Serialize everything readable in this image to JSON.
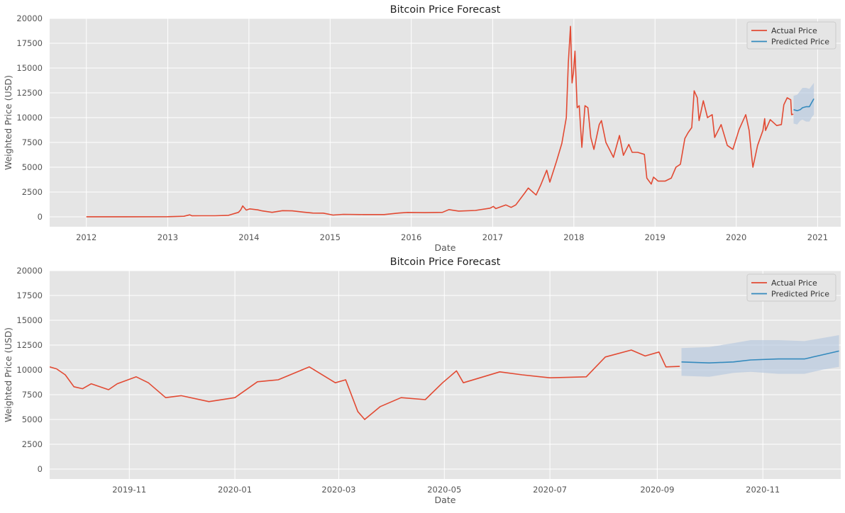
{
  "chart_data": [
    {
      "type": "line",
      "title": "Bitcoin Price Forecast",
      "xlabel": "Date",
      "ylabel": "Weighted Price (USD)",
      "xlim": [
        "2011-07-20",
        "2021-04-15"
      ],
      "ylim": [
        -1000,
        20000
      ],
      "x_ticks": [
        "2012",
        "2013",
        "2014",
        "2015",
        "2016",
        "2017",
        "2018",
        "2019",
        "2020",
        "2021"
      ],
      "y_ticks": [
        0,
        2500,
        5000,
        7500,
        10000,
        12500,
        15000,
        17500,
        20000
      ],
      "grid": true,
      "legend": {
        "position": "top-right",
        "entries": [
          "Actual Price",
          "Predicted Price"
        ]
      },
      "series": [
        {
          "name": "Actual Price",
          "color": "#E24A33",
          "points": [
            [
              "2012-01-01",
              5
            ],
            [
              "2012-07-01",
              8
            ],
            [
              "2013-01-01",
              15
            ],
            [
              "2013-03-15",
              60
            ],
            [
              "2013-04-10",
              200
            ],
            [
              "2013-04-20",
              100
            ],
            [
              "2013-06-01",
              110
            ],
            [
              "2013-08-01",
              110
            ],
            [
              "2013-10-01",
              150
            ],
            [
              "2013-11-15",
              450
            ],
            [
              "2013-11-25",
              700
            ],
            [
              "2013-12-04",
              1100
            ],
            [
              "2013-12-20",
              680
            ],
            [
              "2014-01-05",
              800
            ],
            [
              "2014-02-10",
              700
            ],
            [
              "2014-03-01",
              600
            ],
            [
              "2014-04-15",
              450
            ],
            [
              "2014-06-01",
              620
            ],
            [
              "2014-07-15",
              600
            ],
            [
              "2014-09-01",
              480
            ],
            [
              "2014-10-15",
              380
            ],
            [
              "2014-12-01",
              370
            ],
            [
              "2015-01-14",
              180
            ],
            [
              "2015-03-01",
              250
            ],
            [
              "2015-06-01",
              230
            ],
            [
              "2015-09-01",
              230
            ],
            [
              "2015-11-05",
              380
            ],
            [
              "2015-12-15",
              440
            ],
            [
              "2016-03-01",
              420
            ],
            [
              "2016-05-20",
              450
            ],
            [
              "2016-06-18",
              730
            ],
            [
              "2016-08-01",
              580
            ],
            [
              "2016-10-15",
              640
            ],
            [
              "2016-12-20",
              870
            ],
            [
              "2017-01-04",
              1050
            ],
            [
              "2017-01-15",
              830
            ],
            [
              "2017-03-01",
              1200
            ],
            [
              "2017-03-25",
              950
            ],
            [
              "2017-04-15",
              1200
            ],
            [
              "2017-05-25",
              2400
            ],
            [
              "2017-06-10",
              2900
            ],
            [
              "2017-07-15",
              2200
            ],
            [
              "2017-08-05",
              3200
            ],
            [
              "2017-09-01",
              4700
            ],
            [
              "2017-09-15",
              3500
            ],
            [
              "2017-10-15",
              5600
            ],
            [
              "2017-11-08",
              7400
            ],
            [
              "2017-11-28",
              10000
            ],
            [
              "2017-12-07",
              15500
            ],
            [
              "2017-12-17",
              19200
            ],
            [
              "2017-12-24",
              13500
            ],
            [
              "2017-12-30",
              14500
            ],
            [
              "2018-01-06",
              16700
            ],
            [
              "2018-01-16",
              11000
            ],
            [
              "2018-01-25",
              11200
            ],
            [
              "2018-02-06",
              7000
            ],
            [
              "2018-02-20",
              11200
            ],
            [
              "2018-03-05",
              11000
            ],
            [
              "2018-03-18",
              8000
            ],
            [
              "2018-04-01",
              6800
            ],
            [
              "2018-04-25",
              9300
            ],
            [
              "2018-05-05",
              9700
            ],
            [
              "2018-05-25",
              7500
            ],
            [
              "2018-06-28",
              6000
            ],
            [
              "2018-07-25",
              8200
            ],
            [
              "2018-08-12",
              6200
            ],
            [
              "2018-09-05",
              7300
            ],
            [
              "2018-09-20",
              6500
            ],
            [
              "2018-10-15",
              6500
            ],
            [
              "2018-11-14",
              6300
            ],
            [
              "2018-11-25",
              3900
            ],
            [
              "2018-12-15",
              3300
            ],
            [
              "2018-12-25",
              4000
            ],
            [
              "2019-01-15",
              3600
            ],
            [
              "2019-02-15",
              3600
            ],
            [
              "2019-03-15",
              3900
            ],
            [
              "2019-04-05",
              5000
            ],
            [
              "2019-04-25",
              5300
            ],
            [
              "2019-05-15",
              7900
            ],
            [
              "2019-05-30",
              8500
            ],
            [
              "2019-06-15",
              9000
            ],
            [
              "2019-06-26",
              12700
            ],
            [
              "2019-07-10",
              12000
            ],
            [
              "2019-07-18",
              9700
            ],
            [
              "2019-08-06",
              11700
            ],
            [
              "2019-08-25",
              10000
            ],
            [
              "2019-09-15",
              10300
            ],
            [
              "2019-09-26",
              8000
            ],
            [
              "2019-10-25",
              9300
            ],
            [
              "2019-11-22",
              7200
            ],
            [
              "2019-12-17",
              6800
            ],
            [
              "2020-01-14",
              8800
            ],
            [
              "2020-02-13",
              10300
            ],
            [
              "2020-02-28",
              8700
            ],
            [
              "2020-03-12",
              5800
            ],
            [
              "2020-03-16",
              5000
            ],
            [
              "2020-04-06",
              7200
            ],
            [
              "2020-04-30",
              8700
            ],
            [
              "2020-05-08",
              9900
            ],
            [
              "2020-05-12",
              8700
            ],
            [
              "2020-06-02",
              9800
            ],
            [
              "2020-07-01",
              9200
            ],
            [
              "2020-07-22",
              9300
            ],
            [
              "2020-08-02",
              11300
            ],
            [
              "2020-08-17",
              12000
            ],
            [
              "2020-09-02",
              11800
            ],
            [
              "2020-09-06",
              10300
            ],
            [
              "2020-09-14",
              10350
            ]
          ]
        },
        {
          "name": "Predicted Price",
          "color": "#348ABD",
          "points": [
            [
              "2020-09-15",
              10800
            ],
            [
              "2020-10-01",
              10700
            ],
            [
              "2020-10-15",
              10800
            ],
            [
              "2020-10-25",
              11000
            ],
            [
              "2020-11-10",
              11100
            ],
            [
              "2020-11-25",
              11100
            ],
            [
              "2020-12-05",
              11500
            ],
            [
              "2020-12-15",
              11900
            ]
          ],
          "interval": {
            "upper": [
              12200,
              12300,
              12700,
              13000,
              13000,
              12900,
              13200,
              13500
            ],
            "lower": [
              9400,
              9300,
              9700,
              9800,
              9600,
              9600,
              10000,
              10300
            ]
          }
        }
      ]
    },
    {
      "type": "line",
      "title": "Bitcoin Price Forecast",
      "xlabel": "Date",
      "ylabel": "Weighted Price (USD)",
      "xlim": [
        "2019-09-16",
        "2020-12-16"
      ],
      "ylim": [
        -1000,
        20000
      ],
      "x_ticks": [
        "2019-11",
        "2020-01",
        "2020-03",
        "2020-05",
        "2020-07",
        "2020-09",
        "2020-11"
      ],
      "y_ticks": [
        0,
        2500,
        5000,
        7500,
        10000,
        12500,
        15000,
        17500,
        20000
      ],
      "grid": true,
      "legend": {
        "position": "top-right",
        "entries": [
          "Actual Price",
          "Predicted Price"
        ]
      },
      "series": [
        {
          "name": "Actual Price",
          "color": "#E24A33",
          "points": [
            [
              "2019-09-16",
              10300
            ],
            [
              "2019-09-20",
              10100
            ],
            [
              "2019-09-25",
              9500
            ],
            [
              "2019-09-30",
              8300
            ],
            [
              "2019-10-05",
              8100
            ],
            [
              "2019-10-10",
              8600
            ],
            [
              "2019-10-20",
              8000
            ],
            [
              "2019-10-25",
              8600
            ],
            [
              "2019-11-05",
              9300
            ],
            [
              "2019-11-12",
              8700
            ],
            [
              "2019-11-22",
              7200
            ],
            [
              "2019-12-01",
              7400
            ],
            [
              "2019-12-17",
              6800
            ],
            [
              "2020-01-01",
              7200
            ],
            [
              "2020-01-14",
              8800
            ],
            [
              "2020-01-26",
              9000
            ],
            [
              "2020-02-13",
              10300
            ],
            [
              "2020-02-28",
              8700
            ],
            [
              "2020-03-05",
              9000
            ],
            [
              "2020-03-12",
              5800
            ],
            [
              "2020-03-16",
              5000
            ],
            [
              "2020-03-25",
              6300
            ],
            [
              "2020-04-06",
              7200
            ],
            [
              "2020-04-20",
              7000
            ],
            [
              "2020-04-30",
              8700
            ],
            [
              "2020-05-08",
              9900
            ],
            [
              "2020-05-12",
              8700
            ],
            [
              "2020-06-02",
              9800
            ],
            [
              "2020-06-15",
              9500
            ],
            [
              "2020-07-01",
              9200
            ],
            [
              "2020-07-22",
              9300
            ],
            [
              "2020-08-02",
              11300
            ],
            [
              "2020-08-17",
              12000
            ],
            [
              "2020-08-25",
              11400
            ],
            [
              "2020-09-02",
              11800
            ],
            [
              "2020-09-06",
              10300
            ],
            [
              "2020-09-14",
              10350
            ]
          ]
        },
        {
          "name": "Predicted Price",
          "color": "#348ABD",
          "points": [
            [
              "2020-09-15",
              10800
            ],
            [
              "2020-10-01",
              10700
            ],
            [
              "2020-10-15",
              10800
            ],
            [
              "2020-10-25",
              11000
            ],
            [
              "2020-11-10",
              11100
            ],
            [
              "2020-11-25",
              11100
            ],
            [
              "2020-12-05",
              11500
            ],
            [
              "2020-12-15",
              11900
            ]
          ],
          "interval": {
            "upper": [
              12200,
              12300,
              12700,
              13000,
              13000,
              12900,
              13200,
              13500
            ],
            "lower": [
              9400,
              9300,
              9700,
              9800,
              9600,
              9600,
              10000,
              10300
            ]
          }
        }
      ]
    }
  ]
}
